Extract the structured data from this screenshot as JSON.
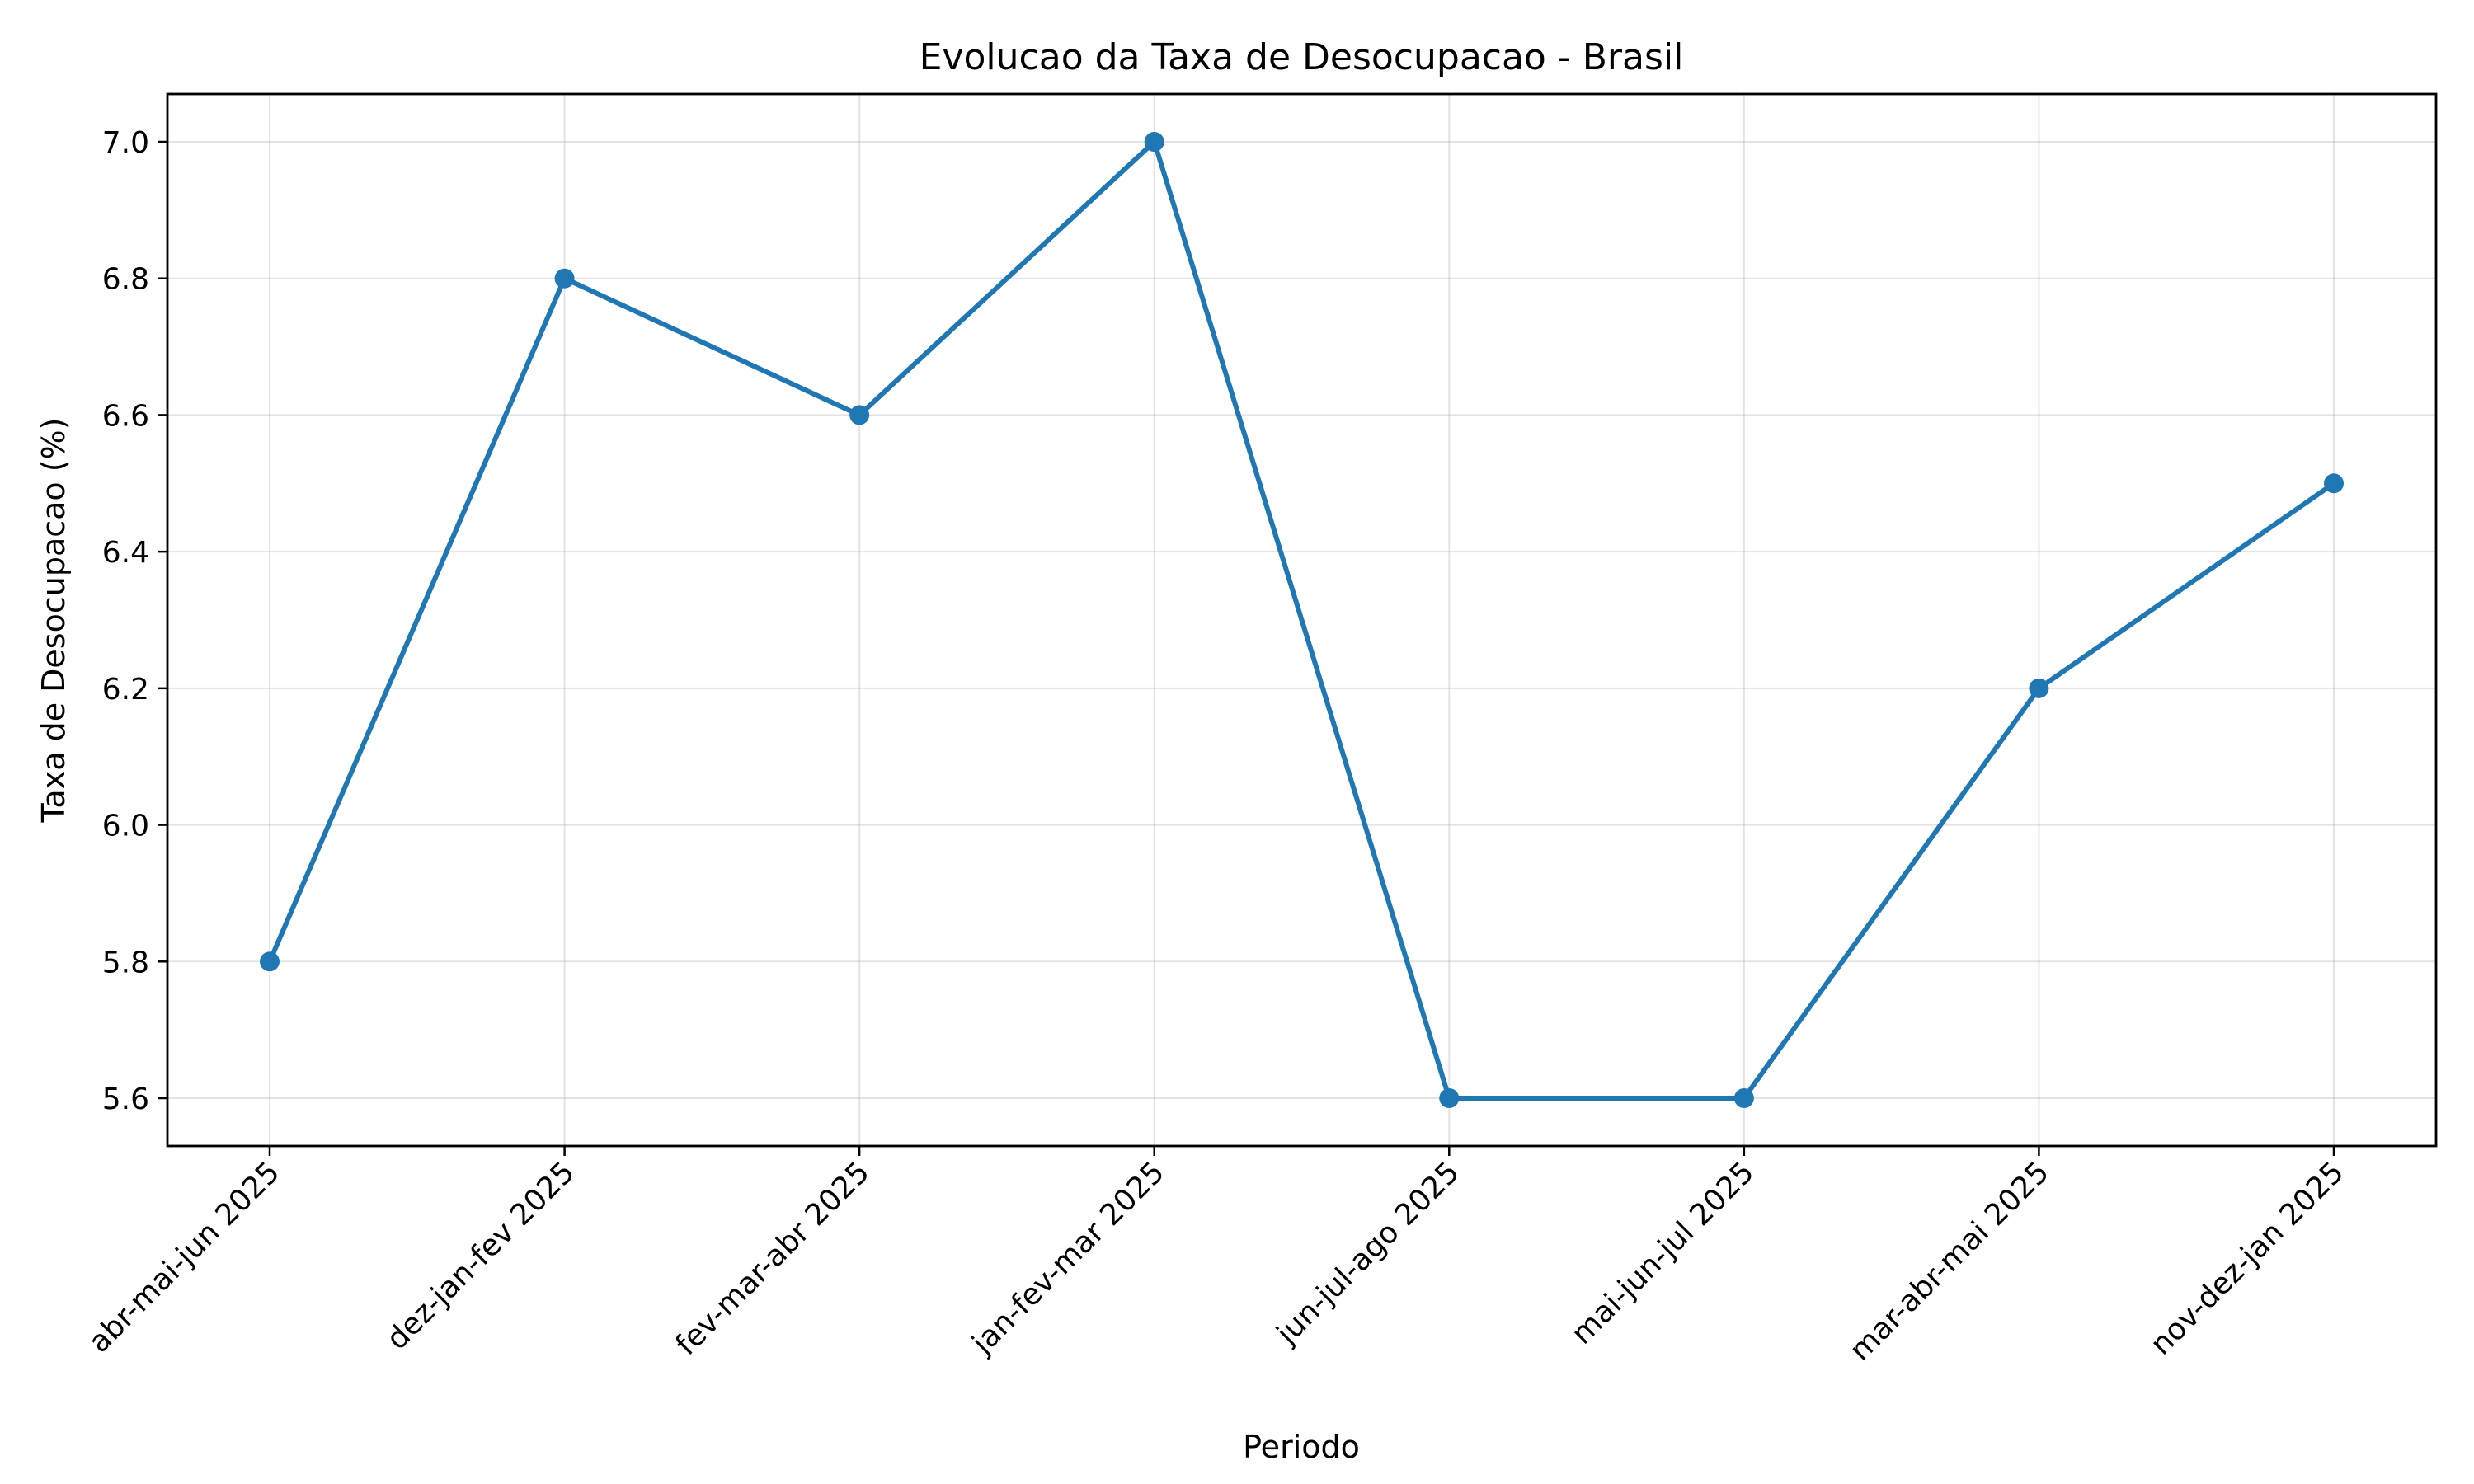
{
  "chart_data": {
    "type": "line",
    "title": "Evolucao da Taxa de Desocupacao - Brasil",
    "xlabel": "Periodo",
    "ylabel": "Taxa de Desocupacao (%)",
    "categories": [
      "abr-mai-jun 2025",
      "dez-jan-fev 2025",
      "fev-mar-abr 2025",
      "jan-fev-mar 2025",
      "jun-jul-ago 2025",
      "mai-jun-jul 2025",
      "mar-abr-mai 2025",
      "nov-dez-jan 2025"
    ],
    "values": [
      5.8,
      6.8,
      6.6,
      7.0,
      5.6,
      5.6,
      6.2,
      6.5
    ],
    "yticks": [
      "5.6",
      "5.8",
      "6.0",
      "6.2",
      "6.4",
      "6.6",
      "6.8",
      "7.0"
    ],
    "ylim": [
      5.53,
      7.07
    ],
    "grid": true,
    "color": "#1f77b4"
  }
}
